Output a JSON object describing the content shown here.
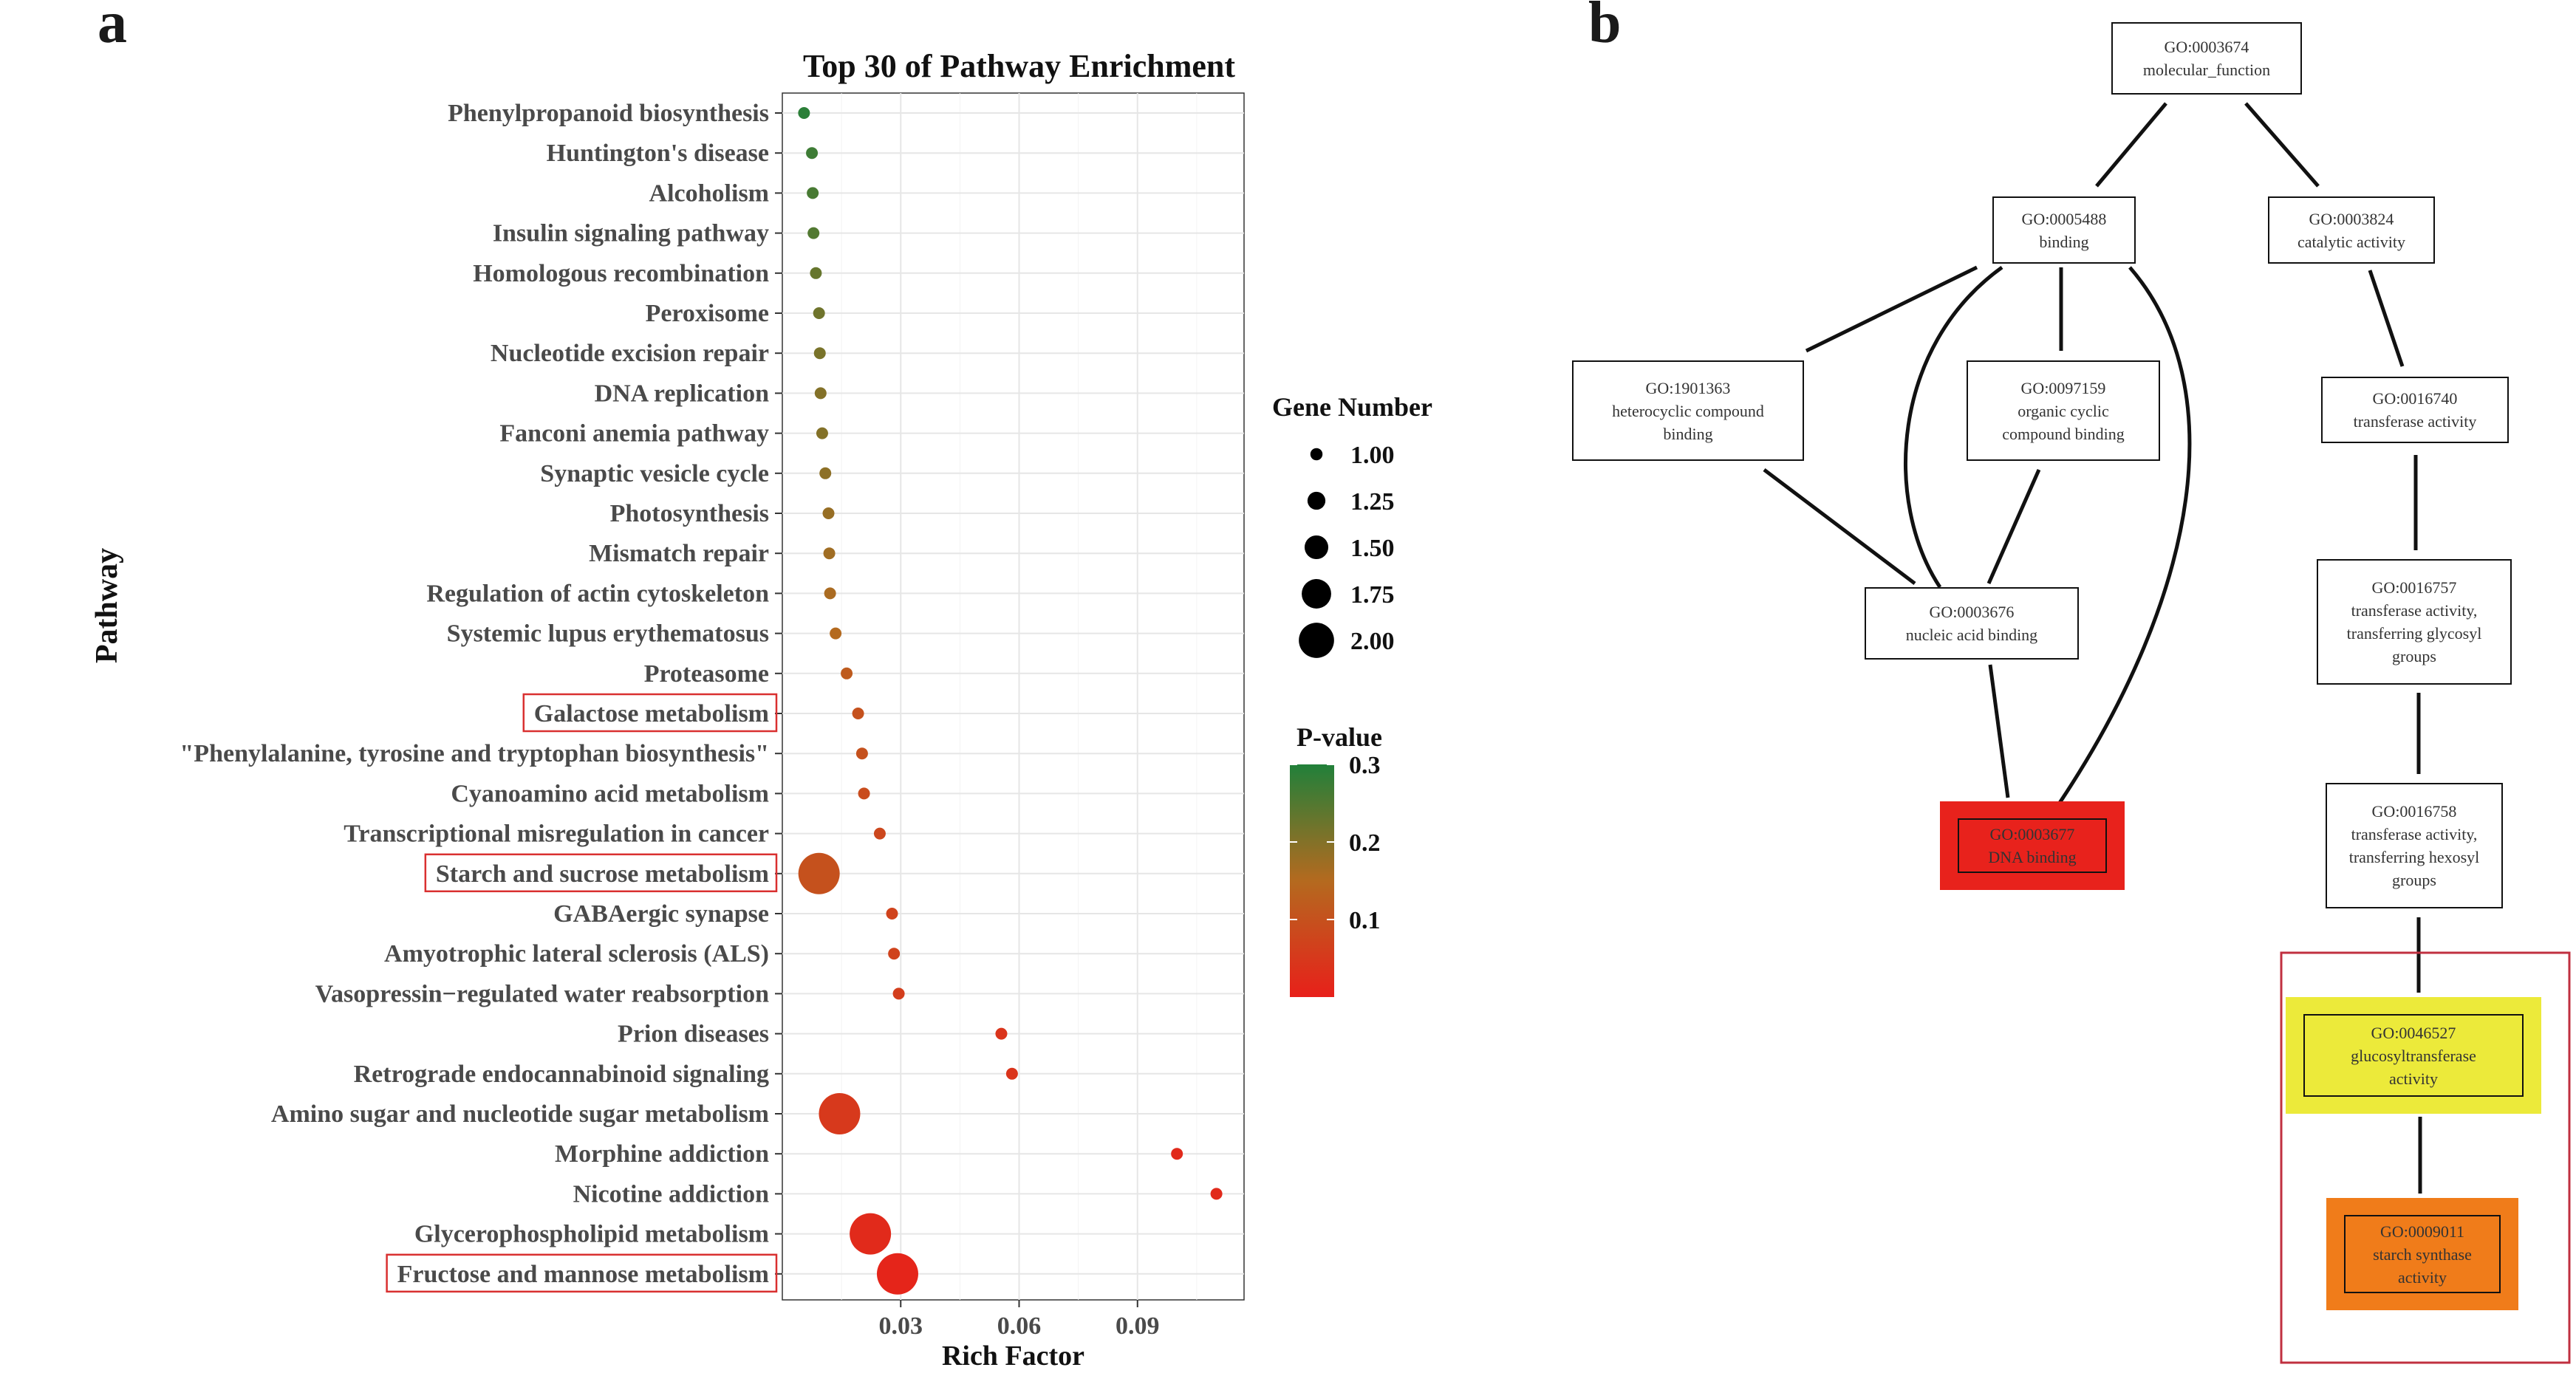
{
  "panel_a": {
    "letter": "a",
    "chart_data": {
      "type": "scatter",
      "title": "Top 30 of Pathway Enrichment",
      "xlabel": "Rich Factor",
      "ylabel": "Pathway",
      "xlim": [
        0,
        0.117
      ],
      "xticks": [
        {
          "value": 0.03,
          "label": "0.03"
        },
        {
          "value": 0.06,
          "label": "0.06"
        },
        {
          "value": 0.09,
          "label": "0.09"
        }
      ],
      "grid": true,
      "points": [
        {
          "pathway": "Phenylpropanoid biosynthesis",
          "x": 0.0055,
          "genes": 1,
          "p": 0.29
        },
        {
          "pathway": "Huntington's disease",
          "x": 0.0075,
          "genes": 1,
          "p": 0.27
        },
        {
          "pathway": "Alcoholism",
          "x": 0.0077,
          "genes": 1,
          "p": 0.26
        },
        {
          "pathway": "Insulin signaling pathway",
          "x": 0.0079,
          "genes": 1,
          "p": 0.25
        },
        {
          "pathway": "Homologous recombination",
          "x": 0.0085,
          "genes": 1,
          "p": 0.23
        },
        {
          "pathway": "Peroxisome",
          "x": 0.0093,
          "genes": 1,
          "p": 0.22
        },
        {
          "pathway": "Nucleotide excision repair",
          "x": 0.0095,
          "genes": 1,
          "p": 0.21
        },
        {
          "pathway": "DNA replication",
          "x": 0.0097,
          "genes": 1,
          "p": 0.2
        },
        {
          "pathway": "Fanconi anemia pathway",
          "x": 0.0101,
          "genes": 1,
          "p": 0.2
        },
        {
          "pathway": "Synaptic vesicle cycle",
          "x": 0.0109,
          "genes": 1,
          "p": 0.19
        },
        {
          "pathway": "Photosynthesis",
          "x": 0.0117,
          "genes": 1,
          "p": 0.18
        },
        {
          "pathway": "Mismatch repair",
          "x": 0.0119,
          "genes": 1,
          "p": 0.17
        },
        {
          "pathway": "Regulation of actin cytoskeleton",
          "x": 0.0121,
          "genes": 1,
          "p": 0.16
        },
        {
          "pathway": "Systemic lupus erythematosus",
          "x": 0.0135,
          "genes": 1,
          "p": 0.15
        },
        {
          "pathway": "Proteasome",
          "x": 0.0163,
          "genes": 1,
          "p": 0.12
        },
        {
          "pathway": "Galactose metabolism",
          "x": 0.0192,
          "genes": 1,
          "p": 0.1
        },
        {
          "pathway": "\"Phenylalanine, tyrosine and tryptophan biosynthesis\"",
          "x": 0.0202,
          "genes": 1,
          "p": 0.1
        },
        {
          "pathway": "Cyanoamino acid metabolism",
          "x": 0.0207,
          "genes": 1,
          "p": 0.09
        },
        {
          "pathway": "Transcriptional misregulation in cancer",
          "x": 0.0247,
          "genes": 1,
          "p": 0.08
        },
        {
          "pathway": "Starch and sucrose metabolism",
          "x": 0.0093,
          "genes": 2,
          "p": 0.1
        },
        {
          "pathway": "GABAergic synapse",
          "x": 0.0278,
          "genes": 1,
          "p": 0.07
        },
        {
          "pathway": "Amyotrophic lateral sclerosis (ALS)",
          "x": 0.0283,
          "genes": 1,
          "p": 0.07
        },
        {
          "pathway": "Vasopressin−regulated water reabsorption",
          "x": 0.0295,
          "genes": 1,
          "p": 0.06
        },
        {
          "pathway": "Prion diseases",
          "x": 0.0555,
          "genes": 1,
          "p": 0.04
        },
        {
          "pathway": "Retrograde endocannabinoid signaling",
          "x": 0.0582,
          "genes": 1,
          "p": 0.04
        },
        {
          "pathway": "Amino sugar and nucleotide sugar metabolism",
          "x": 0.0145,
          "genes": 2,
          "p": 0.05
        },
        {
          "pathway": "Morphine addiction",
          "x": 0.1,
          "genes": 1,
          "p": 0.02
        },
        {
          "pathway": "Nicotine addiction",
          "x": 0.11,
          "genes": 1,
          "p": 0.02
        },
        {
          "pathway": "Glycerophospholipid metabolism",
          "x": 0.0223,
          "genes": 2,
          "p": 0.02
        },
        {
          "pathway": "Fructose and mannose metabolism",
          "x": 0.0292,
          "genes": 2,
          "p": 0.01
        }
      ],
      "highlighted": [
        "Galactose metabolism",
        "Starch and sucrose metabolism",
        "Fructose and mannose metabolism"
      ],
      "size_legend": {
        "title": "Gene Number",
        "entries": [
          {
            "value": 1.0,
            "label": "1.00"
          },
          {
            "value": 1.25,
            "label": "1.25"
          },
          {
            "value": 1.5,
            "label": "1.50"
          },
          {
            "value": 1.75,
            "label": "1.75"
          },
          {
            "value": 2.0,
            "label": "2.00"
          }
        ]
      },
      "color_legend": {
        "title": "P-value",
        "range": [
          0.0,
          0.3
        ],
        "ticks": [
          {
            "value": 0.3,
            "label": "0.3"
          },
          {
            "value": 0.2,
            "label": "0.2"
          },
          {
            "value": 0.1,
            "label": "0.1"
          }
        ],
        "low_color": "#e8201a",
        "mid_color": "#b46a1f",
        "high_color": "#21803a"
      },
      "highlight_color": "#d93030",
      "grid_color": "#e6e6e6"
    }
  },
  "panel_b": {
    "letter": "b",
    "nodes": [
      {
        "key": "n3674",
        "id": "GO:0003674",
        "label": [
          "molecular_function"
        ],
        "fill": ""
      },
      {
        "key": "n5488",
        "id": "GO:0005488",
        "label": [
          "binding"
        ],
        "fill": ""
      },
      {
        "key": "n3824",
        "id": "GO:0003824",
        "label": [
          "catalytic activity"
        ],
        "fill": ""
      },
      {
        "key": "n1901363",
        "id": "GO:1901363",
        "label": [
          "heterocyclic compound",
          "binding"
        ],
        "fill": ""
      },
      {
        "key": "n97159",
        "id": "GO:0097159",
        "label": [
          "organic cyclic",
          "compound binding"
        ],
        "fill": ""
      },
      {
        "key": "n16740",
        "id": "GO:0016740",
        "label": [
          "transferase activity"
        ],
        "fill": ""
      },
      {
        "key": "n3676",
        "id": "GO:0003676",
        "label": [
          "nucleic acid binding"
        ],
        "fill": ""
      },
      {
        "key": "n16757",
        "id": "GO:0016757",
        "label": [
          "transferase activity,",
          "transferring glycosyl",
          "groups"
        ],
        "fill": ""
      },
      {
        "key": "n3677",
        "id": "GO:0003677",
        "label": [
          "DNA binding"
        ],
        "fill": "#e8221c"
      },
      {
        "key": "n16758",
        "id": "GO:0016758",
        "label": [
          "transferase activity,",
          "transferring hexosyl",
          "groups"
        ],
        "fill": ""
      },
      {
        "key": "n46527",
        "id": "GO:0046527",
        "label": [
          "glucosyltransferase",
          "activity"
        ],
        "fill": "#ecea3a"
      },
      {
        "key": "n9011",
        "id": "GO:0009011",
        "label": [
          "starch synthase",
          "activity"
        ],
        "fill": "#f07c1a"
      }
    ],
    "edges": [
      [
        "n3674",
        "n5488"
      ],
      [
        "n3674",
        "n3824"
      ],
      [
        "n5488",
        "n1901363"
      ],
      [
        "n5488",
        "n97159"
      ],
      [
        "n5488",
        "n3676"
      ],
      [
        "n5488",
        "n3677"
      ],
      [
        "n1901363",
        "n3676"
      ],
      [
        "n97159",
        "n3676"
      ],
      [
        "n3676",
        "n3677"
      ],
      [
        "n3824",
        "n16740"
      ],
      [
        "n16740",
        "n16757"
      ],
      [
        "n16757",
        "n16758"
      ],
      [
        "n16758",
        "n46527"
      ],
      [
        "n46527",
        "n9011"
      ]
    ],
    "highlight_box_color": "#c03040"
  }
}
